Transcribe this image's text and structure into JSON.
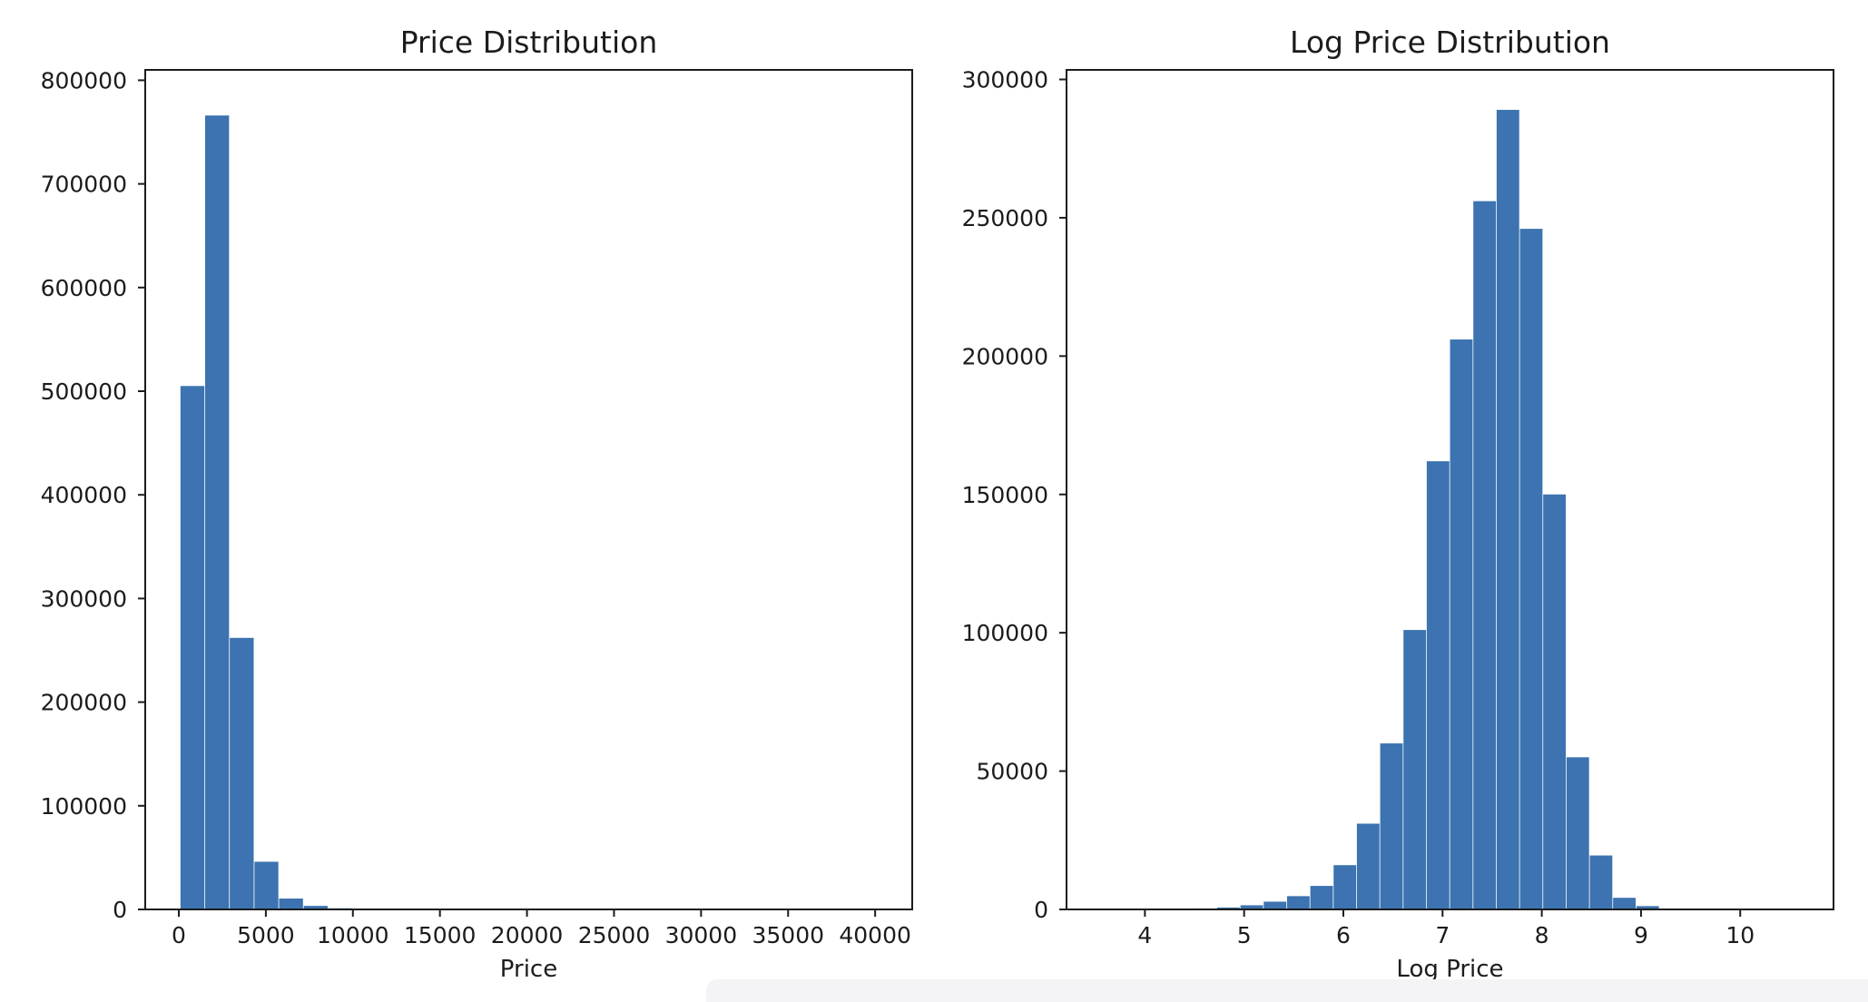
{
  "figure": {
    "background": "#ffffff",
    "text_color": "#1c1c1c",
    "spine_color": "#1c1c1c",
    "bottom_strip_color": "#f4f4f6"
  },
  "chart_data": [
    {
      "type": "bar",
      "subtype": "histogram",
      "title": "Price Distribution",
      "xlabel": "Price",
      "bar_color": "#3c73b0",
      "bin_start": 75,
      "bin_width": 1416,
      "counts": [
        505000,
        766000,
        262000,
        46000,
        10500,
        3400,
        1100,
        420,
        160,
        70,
        30,
        15,
        8,
        5,
        4,
        3,
        2,
        2,
        1,
        1,
        1,
        1,
        1,
        0,
        0,
        0,
        1,
        0,
        0,
        1
      ],
      "xticks": [
        0,
        5000,
        10000,
        15000,
        20000,
        25000,
        30000,
        35000,
        40000
      ],
      "yticks": [
        0,
        100000,
        200000,
        300000,
        400000,
        500000,
        600000,
        700000,
        800000
      ],
      "xlim": [
        -1929,
        42130
      ],
      "ylim": [
        0,
        810000
      ],
      "grid": false,
      "legend": null
    },
    {
      "type": "bar",
      "subtype": "histogram",
      "title": "Log Price Distribution",
      "xlabel": "Log Price",
      "bar_color": "#3c73b0",
      "bin_start": 4.49,
      "bin_width": 0.2347,
      "counts": [
        350,
        700,
        1500,
        2800,
        4800,
        8500,
        16000,
        31000,
        60000,
        101000,
        162000,
        206000,
        256000,
        289000,
        246000,
        150000,
        55000,
        19500,
        4200,
        1200,
        0,
        0,
        0,
        0,
        0,
        2
      ],
      "xticks": [
        4,
        5,
        6,
        7,
        8,
        9,
        10
      ],
      "yticks": [
        0,
        50000,
        100000,
        150000,
        200000,
        250000,
        300000
      ],
      "xlim": [
        3.21,
        10.94
      ],
      "ylim": [
        0,
        303450
      ],
      "grid": false,
      "legend": null
    }
  ]
}
